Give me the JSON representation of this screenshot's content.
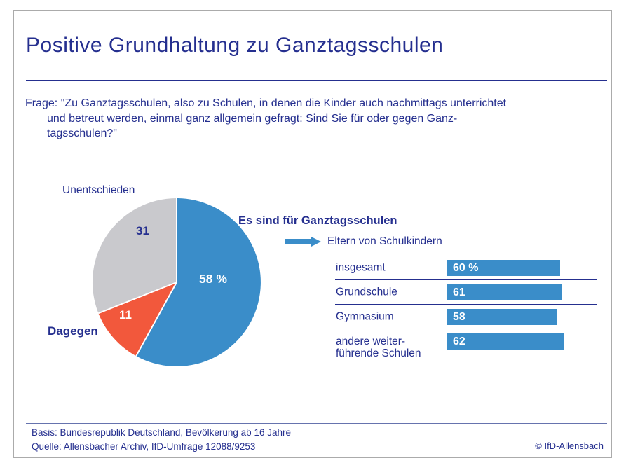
{
  "colors": {
    "navy": "#252F8F",
    "blue": "#3A8DC9",
    "red": "#F2583C",
    "gray": "#C9C9CD",
    "divider": "#6673AE",
    "frame": "#ABABAB",
    "white": "#FFFFFF"
  },
  "slide": {
    "title": "Positive Grundhaltung zu Ganztagsschulen"
  },
  "question": {
    "label": "Frage:",
    "lines": [
      "\"Zu Ganztagsschulen, also zu Schulen, in denen die Kinder auch nachmittags unterrichtet",
      "und betreut werden, einmal ganz allgemein gefragt: Sind Sie für oder gegen Ganz-",
      "tagsschulen?\""
    ]
  },
  "chart_data": [
    {
      "type": "pie",
      "title": "Positive Grundhaltung zu Ganztagsschulen",
      "unit": "percent",
      "start_angle": "top",
      "direction": "clockwise",
      "slices": [
        {
          "label": "Es sind für Ganztagsschulen",
          "value": 58,
          "value_label": "58 %",
          "color": "#3A8DC9"
        },
        {
          "label": "Dagegen",
          "value": 11,
          "value_label": "11",
          "color": "#F2583C"
        },
        {
          "label": "Unentschieden",
          "value": 31,
          "value_label": "31",
          "color": "#C9C9CD"
        }
      ]
    },
    {
      "type": "bar",
      "title": "Eltern von Schulkindern",
      "orientation": "horizontal",
      "categories": [
        "insgesamt",
        "Grundschule",
        "Gymnasium",
        "andere weiter-\nführende Schulen"
      ],
      "values": [
        60,
        61,
        58,
        62
      ],
      "value_labels": [
        "60 %",
        "61",
        "58",
        "62"
      ],
      "xlim": [
        0,
        100
      ],
      "bar_color": "#3A8DC9"
    }
  ],
  "footer": {
    "basis": "Basis: Bundesrepublik Deutschland, Bevölkerung ab 16 Jahre",
    "quelle": "Quelle: Allensbacher Archiv, IfD-Umfrage 12088/9253",
    "copyright": "© IfD-Allensbach"
  }
}
